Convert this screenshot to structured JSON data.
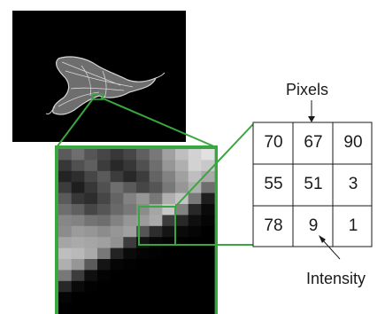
{
  "colors": {
    "background": "#ffffff",
    "zoom_green": "#3aa63f",
    "image_black": "#000000",
    "grid_line": "#1a1a1a",
    "text": "#1a1a1a"
  },
  "labels": {
    "pixels": "Pixels",
    "intensity": "Intensity"
  },
  "pixel_grid": [
    [
      "70",
      "67",
      "90"
    ],
    [
      "55",
      "51",
      "3"
    ],
    [
      "78",
      "9",
      "1"
    ]
  ],
  "zoom_intensities": [
    [
      90,
      110,
      85,
      70,
      55,
      70,
      95,
      120,
      160,
      190,
      210,
      225
    ],
    [
      55,
      80,
      95,
      60,
      40,
      55,
      80,
      110,
      150,
      175,
      210,
      200
    ],
    [
      35,
      45,
      70,
      90,
      60,
      40,
      60,
      100,
      130,
      160,
      190,
      170
    ],
    [
      60,
      30,
      55,
      80,
      110,
      90,
      70,
      85,
      120,
      150,
      175,
      110
    ],
    [
      90,
      55,
      45,
      70,
      100,
      130,
      150,
      120,
      175,
      195,
      120,
      30
    ],
    [
      110,
      95,
      70,
      85,
      105,
      120,
      140,
      165,
      200,
      130,
      40,
      10
    ],
    [
      135,
      130,
      115,
      110,
      130,
      150,
      155,
      170,
      60,
      40,
      15,
      5
    ],
    [
      140,
      155,
      150,
      140,
      150,
      160,
      85,
      45,
      20,
      10,
      5,
      0
    ],
    [
      165,
      170,
      165,
      160,
      145,
      60,
      20,
      8,
      4,
      2,
      0,
      0
    ],
    [
      190,
      185,
      170,
      120,
      35,
      10,
      4,
      2,
      0,
      0,
      0,
      0
    ],
    [
      175,
      150,
      90,
      20,
      5,
      2,
      0,
      0,
      0,
      0,
      0,
      0
    ],
    [
      120,
      60,
      15,
      3,
      0,
      0,
      0,
      0,
      0,
      0,
      0,
      0
    ],
    [
      40,
      10,
      2,
      0,
      0,
      0,
      0,
      0,
      0,
      0,
      0,
      0
    ],
    [
      5,
      0,
      0,
      0,
      0,
      0,
      0,
      0,
      0,
      0,
      0,
      0
    ],
    [
      0,
      0,
      0,
      0,
      0,
      0,
      0,
      0,
      0,
      0,
      0,
      0
    ]
  ]
}
